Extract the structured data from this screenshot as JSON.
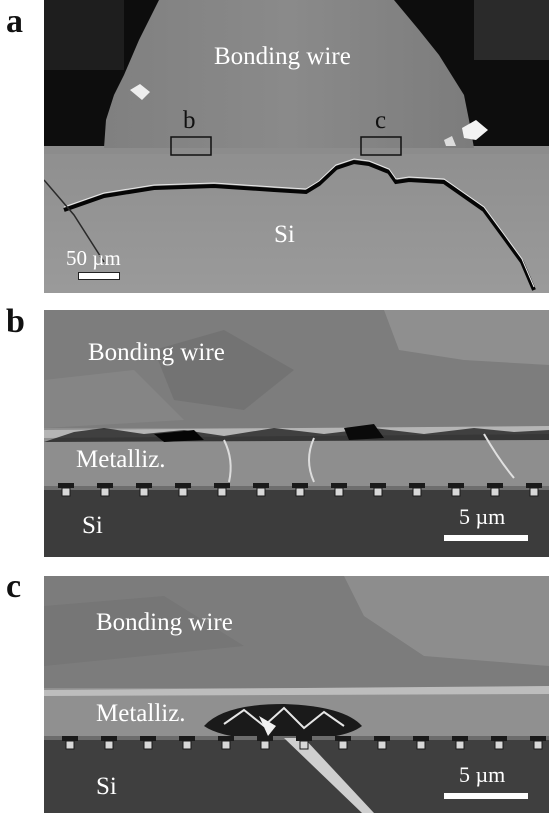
{
  "panels": {
    "a": {
      "label": "a",
      "text_main": "Bonding wire",
      "text_si": "Si",
      "box_b": "b",
      "box_c": "c",
      "scale": "50 µm"
    },
    "b": {
      "label": "b",
      "text_main": "Bonding wire",
      "text_metal": "Metalliz.",
      "text_si": "Si",
      "scale": "5 µm"
    },
    "c": {
      "label": "c",
      "text_main": "Bonding wire",
      "text_metal": "Metalliz.",
      "text_si": "Si",
      "scale": "5 µm"
    }
  }
}
